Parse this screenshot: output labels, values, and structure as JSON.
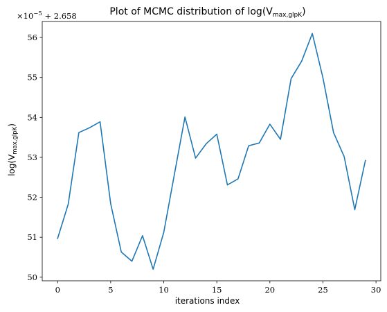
{
  "chart_data": {
    "type": "line",
    "title": "Plot of MCMC distribution of log(V",
    "title_subscript": "max,glpK",
    "title_suffix": ")",
    "xlabel": "iterations index",
    "ylabel": "log(V",
    "ylabel_subscript": "max,glpK",
    "ylabel_suffix": ")",
    "offset_text": "×10",
    "offset_exponent": "−5",
    "offset_suffix": " + 2.658",
    "xlim": [
      -1.45,
      30.45
    ],
    "ylim": [
      49.91,
      56.4
    ],
    "xticks": [
      0,
      5,
      10,
      15,
      20,
      25,
      30
    ],
    "yticks": [
      50,
      51,
      52,
      53,
      54,
      55,
      56
    ],
    "grid": false,
    "series": [
      {
        "color": "#1f77b4",
        "x": [
          0,
          1,
          2,
          3,
          4,
          5,
          6,
          7,
          8,
          9,
          10,
          11,
          12,
          13,
          14,
          15,
          16,
          17,
          18,
          19,
          20,
          21,
          22,
          23,
          24,
          25,
          26,
          27,
          28,
          29
        ],
        "values": [
          50.97,
          51.83,
          53.62,
          53.74,
          53.89,
          51.84,
          50.63,
          50.4,
          51.04,
          50.2,
          51.12,
          52.57,
          54.01,
          52.98,
          53.34,
          53.58,
          52.31,
          52.46,
          53.29,
          53.36,
          53.83,
          53.45,
          54.97,
          55.41,
          56.1,
          54.99,
          53.62,
          53.02,
          51.69,
          52.92
        ]
      }
    ]
  }
}
